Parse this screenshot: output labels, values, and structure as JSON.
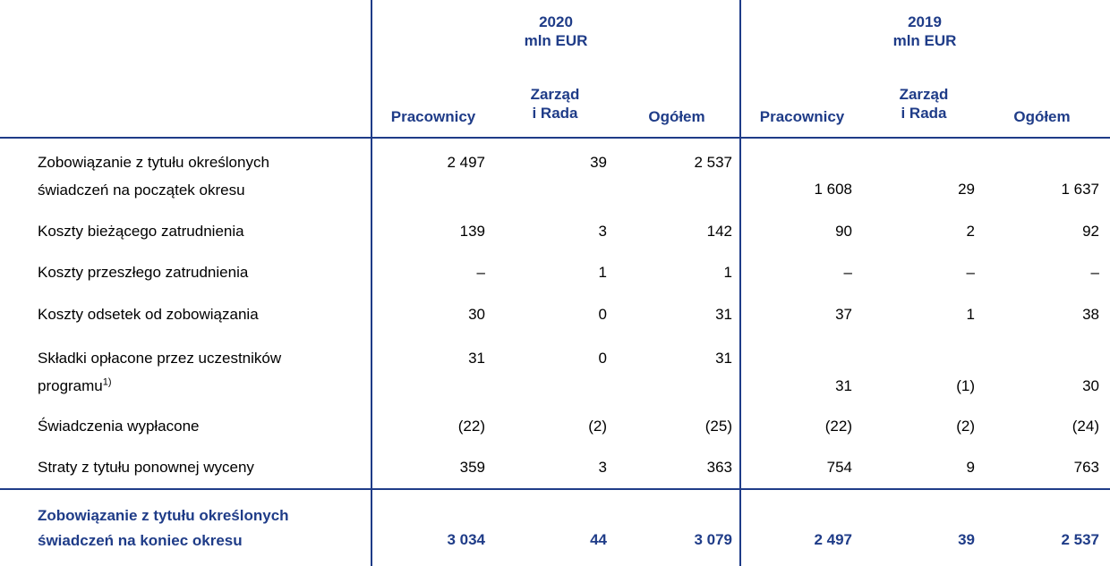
{
  "header": {
    "year_2020": "2020",
    "year_2019": "2019",
    "unit": "mln EUR",
    "columns": {
      "employees": "Pracownicy",
      "board_line1": "Zarząd",
      "board_line2": "i Rada",
      "total": "Ogółem"
    }
  },
  "rows": [
    {
      "label_line1": "Zobowiązanie z tytułu określonych",
      "label_line2": "świadczeń na początek okresu",
      "v2020": [
        "2 497",
        "39",
        "2 537"
      ],
      "v2019": [
        "1 608",
        "29",
        "1 637"
      ]
    },
    {
      "label": "Koszty bieżącego zatrudnienia",
      "v2020": [
        "139",
        "3",
        "142"
      ],
      "v2019": [
        "90",
        "2",
        "92"
      ]
    },
    {
      "label": "Koszty przeszłego zatrudnienia",
      "v2020": [
        "–",
        "1",
        "1"
      ],
      "v2019": [
        "–",
        "–",
        "–"
      ]
    },
    {
      "label": "Koszty odsetek od zobowiązania",
      "v2020": [
        "30",
        "0",
        "31"
      ],
      "v2019": [
        "37",
        "1",
        "38"
      ]
    },
    {
      "label_line1": "Składki opłacone przez uczestników",
      "label_line2": "programu",
      "footnote": "1)",
      "v2020": [
        "31",
        "0",
        "31"
      ],
      "v2019": [
        "31",
        "(1)",
        "30"
      ]
    },
    {
      "label": "Świadczenia wypłacone",
      "v2020": [
        "(22)",
        "(2)",
        "(25)"
      ],
      "v2019": [
        "(22)",
        "(2)",
        "(24)"
      ]
    },
    {
      "label": "Straty z tytułu ponownej wyceny",
      "v2020": [
        "359",
        "3",
        "363"
      ],
      "v2019": [
        "754",
        "9",
        "763"
      ]
    }
  ],
  "total": {
    "label_line1": "Zobowiązanie z tytułu określonych",
    "label_line2": "świadczeń na koniec okresu",
    "v2020": [
      "3 034",
      "44",
      "3 079"
    ],
    "v2019": [
      "2 497",
      "39",
      "2 537"
    ]
  },
  "colors": {
    "rule": "#1f3c88",
    "header_text": "#1f3c88",
    "total_text": "#1f3c88",
    "body_text": "#000000"
  }
}
